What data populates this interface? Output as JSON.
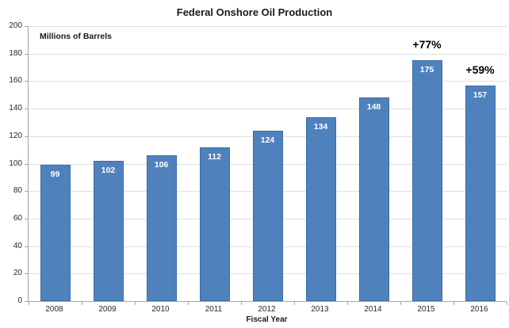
{
  "chart_data": {
    "type": "bar",
    "title": "Federal Onshore Oil Production",
    "ylabel": "Millions of Barrels",
    "xlabel": "Fiscal Year",
    "categories": [
      "2008",
      "2009",
      "2010",
      "2011",
      "2012",
      "2013",
      "2014",
      "2015",
      "2016"
    ],
    "values": [
      99,
      102,
      106,
      112,
      124,
      134,
      148,
      175,
      157
    ],
    "value_labels": [
      "99",
      "102",
      "106",
      "112",
      "124",
      "134",
      "148",
      "175",
      "157"
    ],
    "ylim": [
      0,
      200
    ],
    "ytick_step": 20,
    "ytick_labels": [
      "0",
      "20",
      "40",
      "60",
      "80",
      "100",
      "120",
      "140",
      "160",
      "180",
      "200"
    ],
    "grid": true,
    "legend": "none",
    "annotations": [
      {
        "index": 7,
        "text": "+77%"
      },
      {
        "index": 8,
        "text": "+59%"
      }
    ],
    "colors": {
      "bar_fill": "#4F81BD",
      "bar_border": "#3B6CA5",
      "bar_value_text": "#FFFFFF",
      "gridline": "#E0E0E0",
      "axis_line": "#A6A6A6",
      "tick_text": "#262626",
      "title_text": "#1A1A1A",
      "annotation_text": "#000000",
      "background": "#FFFFFF"
    }
  }
}
